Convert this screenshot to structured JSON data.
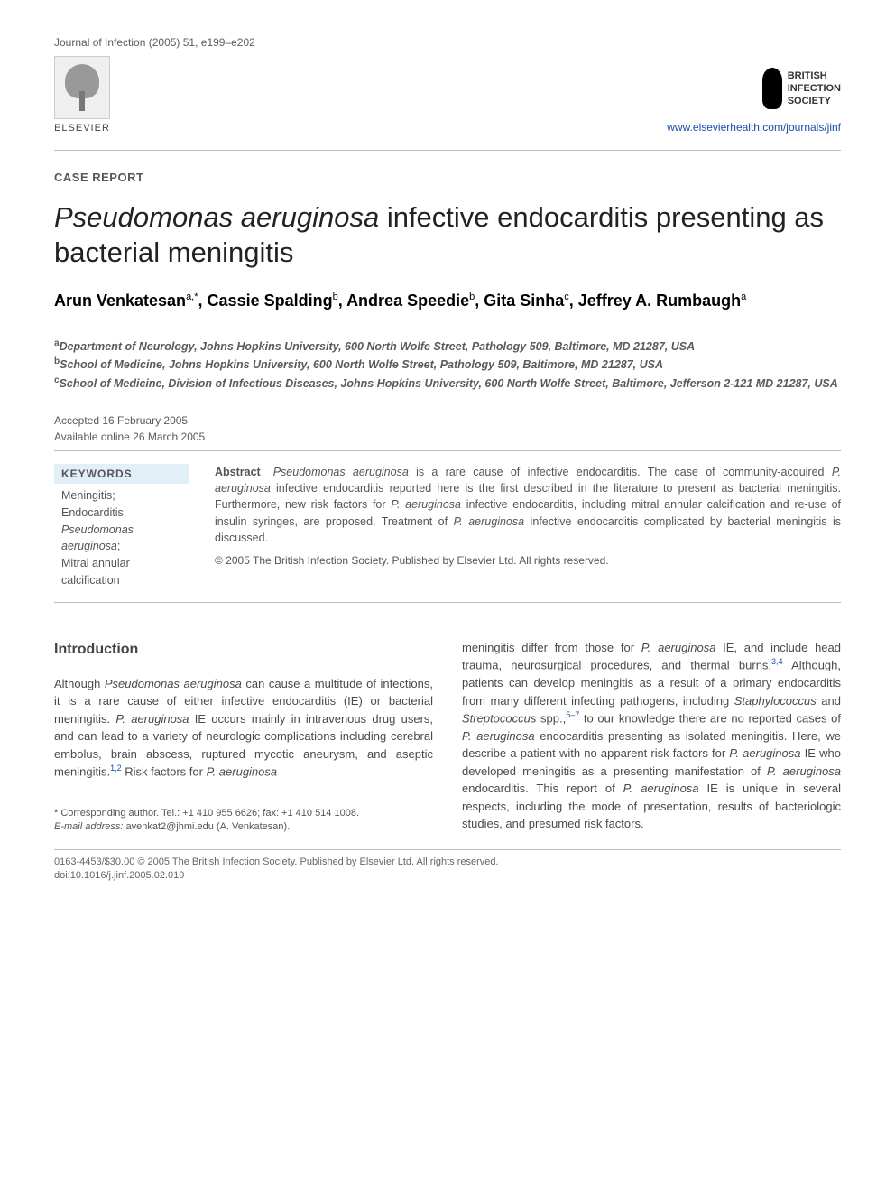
{
  "journal_reference": "Journal of Infection (2005) 51, e199–e202",
  "publisher": {
    "name": "ELSEVIER"
  },
  "society": {
    "line1": "BRITISH",
    "line2": "INFECTION",
    "line3": "SOCIETY"
  },
  "journal_url": "www.elsevierhealth.com/journals/jinf",
  "article_type": "CASE REPORT",
  "title_italic": "Pseudomonas aeruginosa",
  "title_rest": " infective endocarditis presenting as bacterial meningitis",
  "authors": [
    {
      "name": "Arun Venkatesan",
      "sup": "a,*"
    },
    {
      "name": "Cassie Spalding",
      "sup": "b"
    },
    {
      "name": "Andrea Speedie",
      "sup": "b"
    },
    {
      "name": "Gita Sinha",
      "sup": "c"
    },
    {
      "name": "Jeffrey A. Rumbaugh",
      "sup": "a"
    }
  ],
  "affiliations": [
    {
      "sup": "a",
      "text": "Department of Neurology, Johns Hopkins University, 600 North Wolfe Street, Pathology 509, Baltimore, MD 21287, USA"
    },
    {
      "sup": "b",
      "text": "School of Medicine, Johns Hopkins University, 600 North Wolfe Street, Pathology 509, Baltimore, MD 21287, USA"
    },
    {
      "sup": "c",
      "text": "School of Medicine, Division of Infectious Diseases, Johns Hopkins University, 600 North Wolfe Street, Baltimore, Jefferson 2-121 MD 21287, USA"
    }
  ],
  "dates": {
    "accepted": "Accepted 16 February 2005",
    "online": "Available online 26 March 2005"
  },
  "keywords_heading": "KEYWORDS",
  "keywords": [
    {
      "text": "Meningitis;",
      "italic": false
    },
    {
      "text": "Endocarditis;",
      "italic": false
    },
    {
      "text": "Pseudomonas aeruginosa",
      "italic": true
    },
    {
      "text": ";",
      "italic": false
    },
    {
      "text": "Mitral annular calcification",
      "italic": false
    }
  ],
  "abstract": {
    "label": "Abstract",
    "text_parts": [
      {
        "t": "Pseudomonas aeruginosa",
        "i": true
      },
      {
        "t": " is a rare cause of infective endocarditis. The case of community-acquired ",
        "i": false
      },
      {
        "t": "P. aeruginosa",
        "i": true
      },
      {
        "t": " infective endocarditis reported here is the first described in the literature to present as bacterial meningitis. Furthermore, new risk factors for ",
        "i": false
      },
      {
        "t": "P. aeruginosa",
        "i": true
      },
      {
        "t": " infective endocarditis, including mitral annular calcification and re-use of insulin syringes, are proposed. Treatment of ",
        "i": false
      },
      {
        "t": "P. aeruginosa",
        "i": true
      },
      {
        "t": " infective endocarditis complicated by bacterial meningitis is discussed.",
        "i": false
      }
    ],
    "copyright": "© 2005 The British Infection Society. Published by Elsevier Ltd. All rights reserved."
  },
  "intro_heading": "Introduction",
  "intro_col1_parts": [
    {
      "t": "Although ",
      "i": false
    },
    {
      "t": "Pseudomonas aeruginosa",
      "i": true
    },
    {
      "t": " can cause a multitude of infections, it is a rare cause of either infective endocarditis (IE) or bacterial meningitis. ",
      "i": false
    },
    {
      "t": "P. aeruginosa",
      "i": true
    },
    {
      "t": " IE occurs mainly in intravenous drug users, and can lead to a variety of neurologic complications including cerebral embolus, brain abscess, ruptured mycotic aneurysm, and aseptic meningitis.",
      "i": false
    },
    {
      "t": "1,2",
      "sup": true
    },
    {
      "t": " Risk factors for ",
      "i": false
    },
    {
      "t": "P. aeruginosa",
      "i": true
    }
  ],
  "intro_col2_parts": [
    {
      "t": "meningitis differ from those for ",
      "i": false
    },
    {
      "t": "P. aeruginosa",
      "i": true
    },
    {
      "t": " IE, and include head trauma, neurosurgical procedures, and thermal burns.",
      "i": false
    },
    {
      "t": "3,4",
      "sup": true
    },
    {
      "t": " Although, patients can develop meningitis as a result of a primary endocarditis from many different infecting pathogens, including ",
      "i": false
    },
    {
      "t": "Staphylococcus",
      "i": true
    },
    {
      "t": " and ",
      "i": false
    },
    {
      "t": "Streptococcus",
      "i": true
    },
    {
      "t": " spp.,",
      "i": false
    },
    {
      "t": "5–7",
      "sup": true
    },
    {
      "t": " to our knowledge there are no reported cases of ",
      "i": false
    },
    {
      "t": "P. aeruginosa",
      "i": true
    },
    {
      "t": " endocarditis presenting as isolated meningitis. Here, we describe a patient with no apparent risk factors for ",
      "i": false
    },
    {
      "t": "P. aeruginosa",
      "i": true
    },
    {
      "t": " IE who developed meningitis as a presenting manifestation of ",
      "i": false
    },
    {
      "t": "P. aeruginosa",
      "i": true
    },
    {
      "t": " endocarditis. This report of ",
      "i": false
    },
    {
      "t": "P. aeruginosa",
      "i": true
    },
    {
      "t": " IE is unique in several respects, including the mode of presentation, results of bacteriologic studies, and presumed risk factors.",
      "i": false
    }
  ],
  "corresponding": {
    "line1": "* Corresponding author. Tel.: +1 410 955 6626; fax: +1 410 514 1008.",
    "email_label": "E-mail address:",
    "email": " avenkat2@jhmi.edu (A. Venkatesan)."
  },
  "footer": {
    "line1": "0163-4453/$30.00 © 2005 The British Infection Society. Published by Elsevier Ltd. All rights reserved.",
    "line2": "doi:10.1016/j.jinf.2005.02.019"
  },
  "colors": {
    "keyword_bg": "#e1eff6",
    "link_color": "#1a4ba8",
    "text_gray": "#5a5a5a",
    "rule_color": "#bdbdbd"
  }
}
